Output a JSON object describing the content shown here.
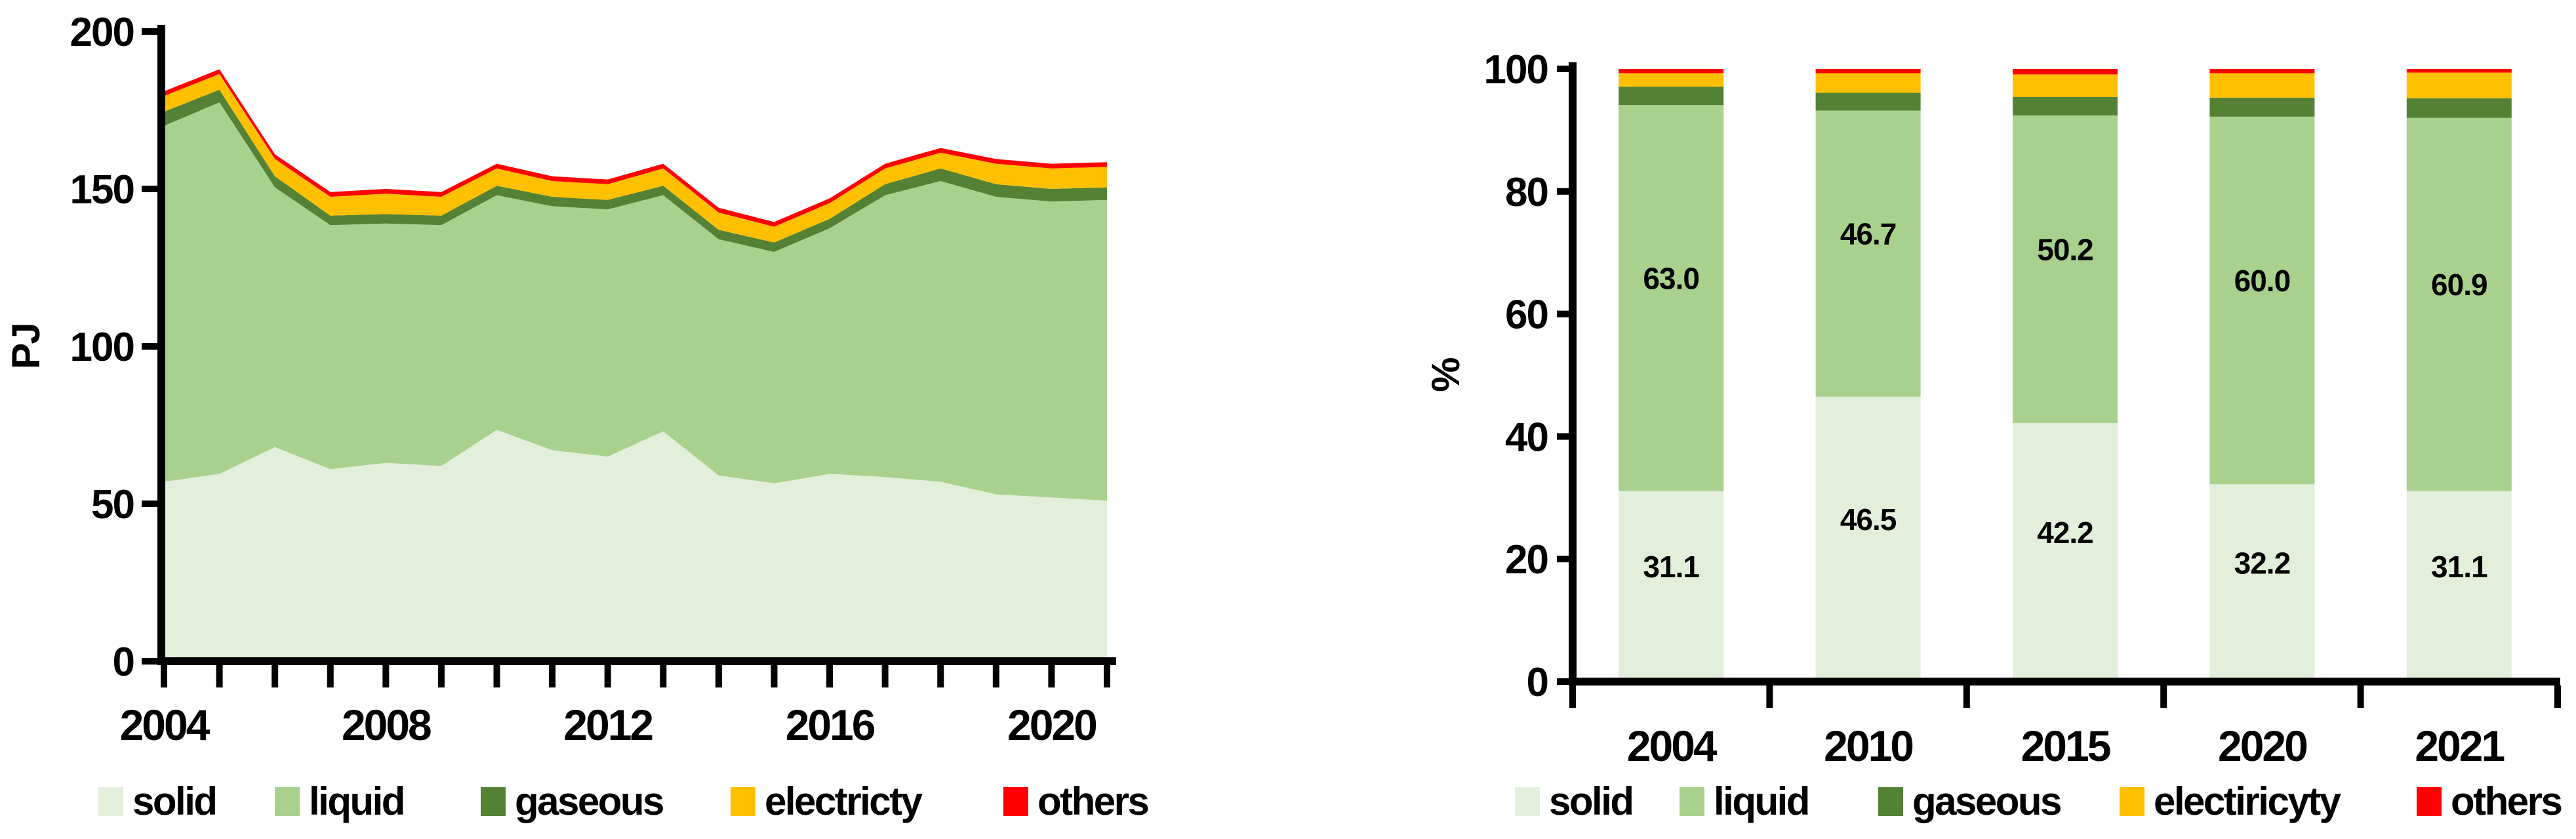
{
  "page": {
    "background": "#FFFFFF"
  },
  "colors": {
    "solid": "#E2EFDA",
    "liquid": "#A9D18E",
    "gaseous": "#548235",
    "electricity": "#FFC000",
    "others": "#FF0000",
    "axis": "#000000",
    "text": "#000000"
  },
  "chart_data": [
    {
      "id": "energy-consumption-area",
      "type": "area",
      "stacked": true,
      "title": "",
      "xlabel": "",
      "ylabel": "PJ",
      "ylim": [
        0,
        200
      ],
      "yticks": [
        0,
        50,
        100,
        150,
        200
      ],
      "x": [
        2004,
        2005,
        2006,
        2007,
        2008,
        2009,
        2010,
        2011,
        2012,
        2013,
        2014,
        2015,
        2016,
        2017,
        2018,
        2019,
        2020,
        2021
      ],
      "xticks_labeled": [
        "2004",
        "2008",
        "2012",
        "2016",
        "2020"
      ],
      "grid": false,
      "legend_position": "bottom",
      "series": [
        {
          "name": "solid",
          "color": "#E2EFDA",
          "values": [
            57,
            59.5,
            68,
            61,
            63,
            62,
            73.5,
            67,
            65,
            73,
            59,
            56.5,
            59.5,
            58.5,
            57,
            53,
            52,
            51
          ]
        },
        {
          "name": "liquid",
          "color": "#A9D18E",
          "values": [
            113,
            118,
            82.5,
            77.5,
            76,
            76.5,
            74.5,
            77.5,
            78.5,
            75,
            75,
            73.5,
            78,
            89.5,
            95.5,
            94.5,
            94,
            95.5
          ]
        },
        {
          "name": "gaseous",
          "color": "#548235",
          "values": [
            4.5,
            4,
            3.5,
            3,
            3,
            3,
            3,
            3,
            3,
            3,
            3,
            3,
            3,
            3.5,
            4,
            4,
            4,
            4
          ]
        },
        {
          "name": "electricty",
          "color": "#FFC000",
          "values": [
            5,
            5,
            5.5,
            6,
            6.5,
            6,
            5.5,
            5,
            5,
            5.5,
            5.5,
            5,
            5,
            5,
            5,
            6.5,
            6.5,
            6.5
          ]
        },
        {
          "name": "others",
          "color": "#FF0000",
          "values": [
            1.5,
            1.5,
            1.5,
            1.5,
            1.5,
            1.5,
            1.5,
            1.5,
            1.5,
            1.5,
            1.5,
            1.5,
            1.5,
            1.5,
            1.5,
            1.5,
            1.5,
            1.5
          ]
        }
      ],
      "legend": [
        {
          "label": "solid"
        },
        {
          "label": "liquid"
        },
        {
          "label": "gaseous"
        },
        {
          "label": "electricty"
        },
        {
          "label": "others"
        }
      ]
    },
    {
      "id": "energy-share-bars",
      "type": "bar",
      "stacked": true,
      "stack_total": 100,
      "title": "",
      "xlabel": "",
      "ylabel": "%",
      "ylim": [
        0,
        100
      ],
      "yticks": [
        0,
        20,
        40,
        60,
        80,
        100
      ],
      "categories": [
        "2004",
        "2010",
        "2015",
        "2020",
        "2021"
      ],
      "grid": false,
      "legend_position": "bottom",
      "series": [
        {
          "name": "solid",
          "color": "#E2EFDA",
          "values": [
            31.1,
            46.5,
            42.2,
            32.2,
            31.1
          ],
          "data_labels": [
            "31.1",
            "46.5",
            "42.2",
            "32.2",
            "31.1"
          ]
        },
        {
          "name": "liquid",
          "color": "#A9D18E",
          "values": [
            63.0,
            46.7,
            50.2,
            60.0,
            60.9
          ],
          "data_labels": [
            "63.0",
            "46.7",
            "50.2",
            "60.0",
            "60.9"
          ]
        },
        {
          "name": "gaseous",
          "color": "#548235",
          "values": [
            3.0,
            2.9,
            3.0,
            3.1,
            3.2
          ]
        },
        {
          "name": "electiricyty",
          "color": "#FFC000",
          "values": [
            2.2,
            3.2,
            3.7,
            4.0,
            4.2
          ]
        },
        {
          "name": "others",
          "color": "#FF0000",
          "values": [
            0.7,
            0.7,
            0.9,
            0.7,
            0.6
          ]
        }
      ],
      "legend": [
        {
          "label": "solid"
        },
        {
          "label": "liquid"
        },
        {
          "label": "gaseous"
        },
        {
          "label": "electiricyty"
        },
        {
          "label": "others"
        }
      ]
    }
  ]
}
